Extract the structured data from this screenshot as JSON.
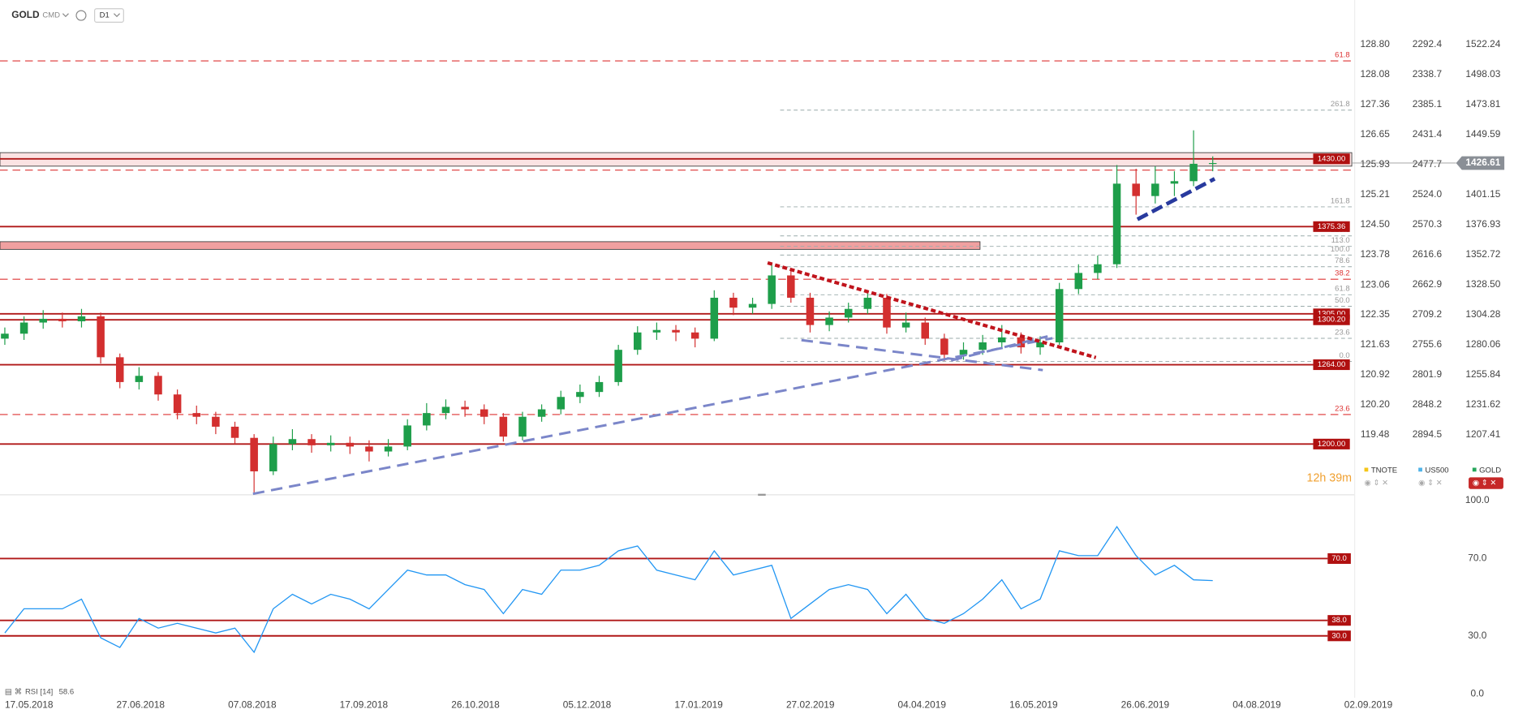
{
  "toolbar": {
    "symbol": "GOLD",
    "market": "CMD",
    "interval": "D1"
  },
  "chart_data": [
    {
      "type": "candlestick",
      "name": "GOLD",
      "up_color": "#1e9e4a",
      "down_color": "#d32f2f",
      "open": [
        1285,
        1289,
        1298,
        1301,
        1299,
        1303,
        1270,
        1250,
        1255,
        1240,
        1225,
        1222,
        1214,
        1205,
        1178,
        1200,
        1204,
        1199,
        1201,
        1198,
        1194,
        1198,
        1215,
        1225,
        1230,
        1228,
        1222,
        1206,
        1222,
        1228,
        1238,
        1242,
        1250,
        1276,
        1290,
        1292,
        1290,
        1285,
        1318,
        1310,
        1313,
        1336,
        1318,
        1296,
        1302,
        1309,
        1318,
        1294,
        1298,
        1285,
        1272,
        1276,
        1282,
        1286,
        1278,
        1282,
        1325,
        1338,
        1345,
        1410,
        1400,
        1410,
        1412,
        1426
      ],
      "high": [
        1294,
        1303,
        1308,
        1306,
        1309,
        1306,
        1273,
        1262,
        1258,
        1244,
        1231,
        1226,
        1218,
        1208,
        1206,
        1212,
        1208,
        1207,
        1206,
        1203,
        1204,
        1220,
        1233,
        1236,
        1235,
        1232,
        1225,
        1226,
        1232,
        1243,
        1248,
        1255,
        1280,
        1295,
        1298,
        1296,
        1294,
        1324,
        1322,
        1318,
        1346,
        1340,
        1322,
        1307,
        1314,
        1324,
        1321,
        1306,
        1302,
        1289,
        1282,
        1288,
        1296,
        1290,
        1287,
        1330,
        1345,
        1352,
        1425,
        1422,
        1424,
        1420,
        1453,
        1432
      ],
      "low": [
        1280,
        1284,
        1293,
        1294,
        1294,
        1265,
        1245,
        1244,
        1235,
        1220,
        1216,
        1208,
        1200,
        1161,
        1175,
        1195,
        1193,
        1194,
        1192,
        1186,
        1190,
        1195,
        1211,
        1220,
        1222,
        1216,
        1202,
        1203,
        1218,
        1224,
        1233,
        1238,
        1247,
        1272,
        1284,
        1283,
        1278,
        1283,
        1304,
        1305,
        1309,
        1314,
        1290,
        1291,
        1298,
        1305,
        1289,
        1290,
        1280,
        1267,
        1268,
        1272,
        1278,
        1273,
        1272,
        1280,
        1321,
        1333,
        1342,
        1385,
        1394,
        1400,
        1408,
        1420
      ],
      "close": [
        1289,
        1298,
        1301,
        1299,
        1303,
        1270,
        1250,
        1255,
        1240,
        1225,
        1222,
        1214,
        1205,
        1178,
        1200,
        1204,
        1199,
        1201,
        1198,
        1194,
        1198,
        1215,
        1225,
        1230,
        1228,
        1222,
        1206,
        1222,
        1228,
        1238,
        1242,
        1250,
        1276,
        1290,
        1292,
        1290,
        1285,
        1318,
        1310,
        1313,
        1336,
        1318,
        1296,
        1302,
        1309,
        1318,
        1294,
        1298,
        1285,
        1272,
        1276,
        1282,
        1286,
        1278,
        1282,
        1325,
        1338,
        1345,
        1410,
        1400,
        1410,
        1412,
        1426,
        1426.61
      ],
      "ylim": [
        1159.1,
        1558.1
      ],
      "yticks": [
        1522.24,
        1498.03,
        1473.81,
        1449.59,
        1401.15,
        1376.93,
        1352.72,
        {
          "value": 1328.5,
          "label": "1328.50"
        },
        1304.28,
        1280.06,
        1255.84,
        1231.62,
        1207.41
      ],
      "y2lim": [
        118.05,
        129.86
      ],
      "y2ticks": [
        {
          "value": 128.8,
          "label": "128.80"
        },
        128.08,
        127.36,
        126.65,
        125.93,
        125.21,
        {
          "value": 124.5,
          "label": "124.50"
        },
        123.78,
        123.06,
        122.35,
        121.63,
        120.92,
        {
          "value": 120.2,
          "label": "120.20"
        },
        119.48
      ],
      "y3lim": [
        2986.9,
        2223.8
      ],
      "y3ticks": [
        2292.4,
        2338.7,
        2385.1,
        2431.4,
        2477.7,
        {
          "value": 2524,
          "label": "2524.0"
        },
        2570.3,
        2616.6,
        2662.9,
        2709.2,
        2755.6,
        2801.9,
        2848.2,
        2894.5
      ],
      "zones": [
        {
          "range": [
            1424.1,
            1435.0
          ]
        },
        {
          "range": [
            1357.0,
            1363.2
          ]
        }
      ],
      "levels": [
        {
          "value": 1430,
          "label": "1430.00"
        },
        1375.36,
        {
          "value": 1305,
          "label": "1305.00"
        },
        {
          "value": 1300.2,
          "label": "1300.20"
        },
        {
          "value": 1264,
          "label": "1264.00"
        },
        {
          "value": 1200,
          "label": "1200.00"
        }
      ],
      "dashed_levels": [
        {
          "value": 1509,
          "label": "61.8"
        },
        1420.9,
        {
          "value": 1332.9,
          "label": "38.2"
        },
        {
          "value": 1223.8,
          "label": "23.6"
        }
      ],
      "fib_levels": [
        {
          "value": 1469.3,
          "label": "261.8"
        },
        {
          "value": 1391.3,
          "label": "161.8"
        },
        {
          "value": 1367.9,
          "label": "123.6"
        },
        {
          "value": 1359.4,
          "label": "113.0"
        },
        {
          "value": 1352.4,
          "label": "100.0"
        },
        {
          "value": 1343,
          "label": "78.6"
        },
        {
          "value": 1320.4,
          "label": "61.8"
        },
        {
          "value": 1311.1,
          "label": "50.0"
        },
        {
          "value": 1285.3,
          "label": "23.6"
        },
        {
          "value": 1266.6,
          "label": "0.0"
        }
      ],
      "legend": [
        {
          "name": "TNOTE",
          "color": "#f5c518"
        },
        {
          "name": "US500",
          "color": "#4fb3e8"
        },
        {
          "name": "GOLD",
          "color": "#26a65b"
        }
      ],
      "timer": "12h 39m",
      "date_labels": [
        "17.05.2018",
        "27.06.2018",
        "07.08.2018",
        "17.09.2018",
        "26.10.2018",
        "05.12.2018",
        "17.01.2019",
        "27.02.2019",
        "04.04.2019",
        "16.05.2019",
        "26.06.2019",
        "04.08.2019",
        "02.09.2019"
      ]
    },
    {
      "type": "line",
      "name": "RSI [14]",
      "color": "#2196f3",
      "values": [
        31.5,
        44,
        44,
        44,
        49,
        29,
        24,
        39,
        34,
        36.5,
        34,
        31.5,
        34,
        21.5,
        44,
        51.5,
        46.5,
        51.5,
        49,
        44,
        54,
        64,
        61.5,
        61.5,
        56.5,
        54,
        41.5,
        54,
        51.5,
        64,
        64,
        66.5,
        74,
        76.5,
        64,
        61.5,
        59,
        74,
        61.5,
        64,
        66.5,
        39,
        46.5,
        54,
        56.5,
        54,
        41.5,
        51.5,
        39,
        36.5,
        41.5,
        49,
        59,
        44,
        49,
        74,
        71.5,
        71.5,
        86.5,
        71.5,
        61.5,
        66.5,
        59,
        58.6
      ],
      "ylim": [
        -2,
        103
      ],
      "yticks": [
        {
          "value": 100,
          "label": "100.0"
        },
        {
          "value": 70,
          "label": "70.0"
        },
        {
          "value": 30,
          "label": "30.0"
        },
        {
          "value": 0,
          "label": "0.0"
        }
      ],
      "levels": [
        {
          "value": 70,
          "label": "70.0"
        },
        {
          "value": 38,
          "label": "38.0"
        },
        {
          "value": 30,
          "label": "30.0"
        }
      ]
    }
  ]
}
